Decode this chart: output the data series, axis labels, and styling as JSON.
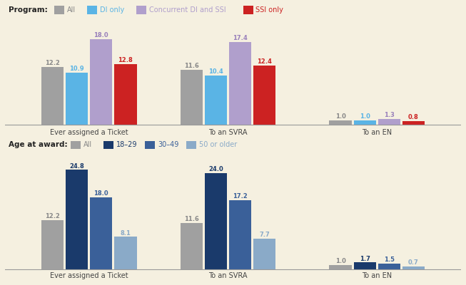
{
  "bg_color": "#f5f0e0",
  "chart1": {
    "legend": [
      {
        "label": "All",
        "color": "#a0a0a0"
      },
      {
        "label": "DI only",
        "color": "#5ab4e5"
      },
      {
        "label": "Concurrent DI and SSI",
        "color": "#b09fcc"
      },
      {
        "label": "SSI only",
        "color": "#cc2222"
      }
    ],
    "groups": [
      "Ever assigned a Ticket",
      "To an SVRA",
      "To an EN"
    ],
    "series": [
      {
        "label": "All",
        "color": "#a0a0a0",
        "values": [
          12.2,
          11.6,
          1.0
        ]
      },
      {
        "label": "DI only",
        "color": "#5ab4e5",
        "values": [
          10.9,
          10.4,
          1.0
        ]
      },
      {
        "label": "Concurrent DI and SSI",
        "color": "#b09fcc",
        "values": [
          18.0,
          17.4,
          1.3
        ]
      },
      {
        "label": "SSI only",
        "color": "#cc2222",
        "values": [
          12.8,
          12.4,
          0.8
        ]
      }
    ],
    "value_colors": [
      "#888888",
      "#5ab4e5",
      "#9980bb",
      "#cc2222"
    ]
  },
  "chart2": {
    "legend": [
      {
        "label": "All",
        "color": "#a0a0a0"
      },
      {
        "label": "18–29",
        "color": "#1a3a6b"
      },
      {
        "label": "30–49",
        "color": "#3a6099"
      },
      {
        "label": "50 or older",
        "color": "#8aaac8"
      }
    ],
    "groups": [
      "Ever assigned a Ticket",
      "To an SVRA",
      "To an EN"
    ],
    "series": [
      {
        "label": "All",
        "color": "#a0a0a0",
        "values": [
          12.2,
          11.6,
          1.0
        ]
      },
      {
        "label": "18–29",
        "color": "#1a3a6b",
        "values": [
          24.8,
          24.0,
          1.7
        ]
      },
      {
        "label": "30–49",
        "color": "#3a6099",
        "values": [
          18.0,
          17.2,
          1.5
        ]
      },
      {
        "label": "50 or older",
        "color": "#8aaac8",
        "values": [
          8.1,
          7.7,
          0.7
        ]
      }
    ],
    "value_colors": [
      "#888888",
      "#1a3a6b",
      "#3a6099",
      "#8aaac8"
    ]
  },
  "legend1_label": "Program:",
  "legend2_label": "Age at award:",
  "fig_width": 6.53,
  "fig_height": 4.0,
  "fig_dpi": 100
}
